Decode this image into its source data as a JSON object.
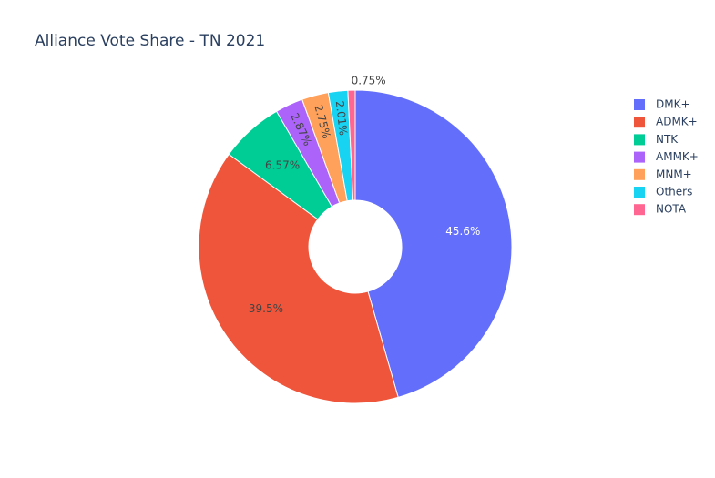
{
  "chart_data": {
    "type": "pie",
    "title": "Alliance Vote Share - TN 2021",
    "labels": [
      "DMK+",
      "ADMK+",
      "NTK",
      "AMMK+",
      "MNM+",
      "Others",
      "NOTA"
    ],
    "values": [
      45.6,
      39.5,
      6.57,
      2.87,
      2.75,
      2.01,
      0.75
    ],
    "value_labels": [
      "45.6%",
      "39.5%",
      "6.57%",
      "2.87%",
      "2.75%",
      "2.01%",
      "0.75%"
    ],
    "colors": [
      "#636efa",
      "#ef553b",
      "#00cc96",
      "#ab63fa",
      "#ffa15a",
      "#19d3f3",
      "#ff6692"
    ],
    "donut": true,
    "legend": "right"
  }
}
